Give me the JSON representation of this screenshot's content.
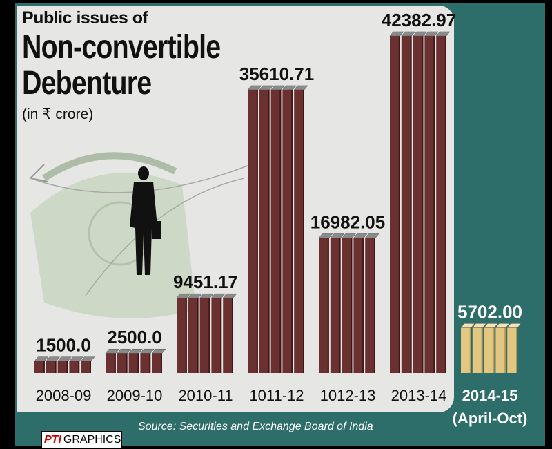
{
  "title": {
    "top": "Public issues of",
    "line1": "Non-convertible",
    "line2": "Debenture",
    "unit": "(in ₹ crore)"
  },
  "source": "Source: Securities and Exchange Board of India",
  "logo": {
    "pti": "PTI",
    "graphics": "GRAPHICS"
  },
  "colors": {
    "bar": "#6b3030",
    "bar_highlight": "#e3c780",
    "background_panel": "#e6e6e4",
    "teal": "#2d6e6a"
  },
  "chart_data": {
    "type": "bar",
    "categories": [
      "2008-09",
      "2009-10",
      "2010-11",
      "1011-12",
      "1012-13",
      "2013-14",
      "2014-15"
    ],
    "category_sublabel": {
      "2014-15": "(April-Oct)"
    },
    "values": [
      1500.0,
      2500.0,
      9451.17,
      35610.71,
      16982.05,
      42382.97,
      5702.0
    ],
    "value_labels": [
      "1500.0",
      "2500.0",
      "9451.17",
      "35610.71",
      "16982.05",
      "42382.97",
      "5702.00"
    ],
    "highlight_index": 6,
    "title": "Non-convertible Debenture",
    "ylabel": "",
    "xlabel": "",
    "grid": false
  }
}
